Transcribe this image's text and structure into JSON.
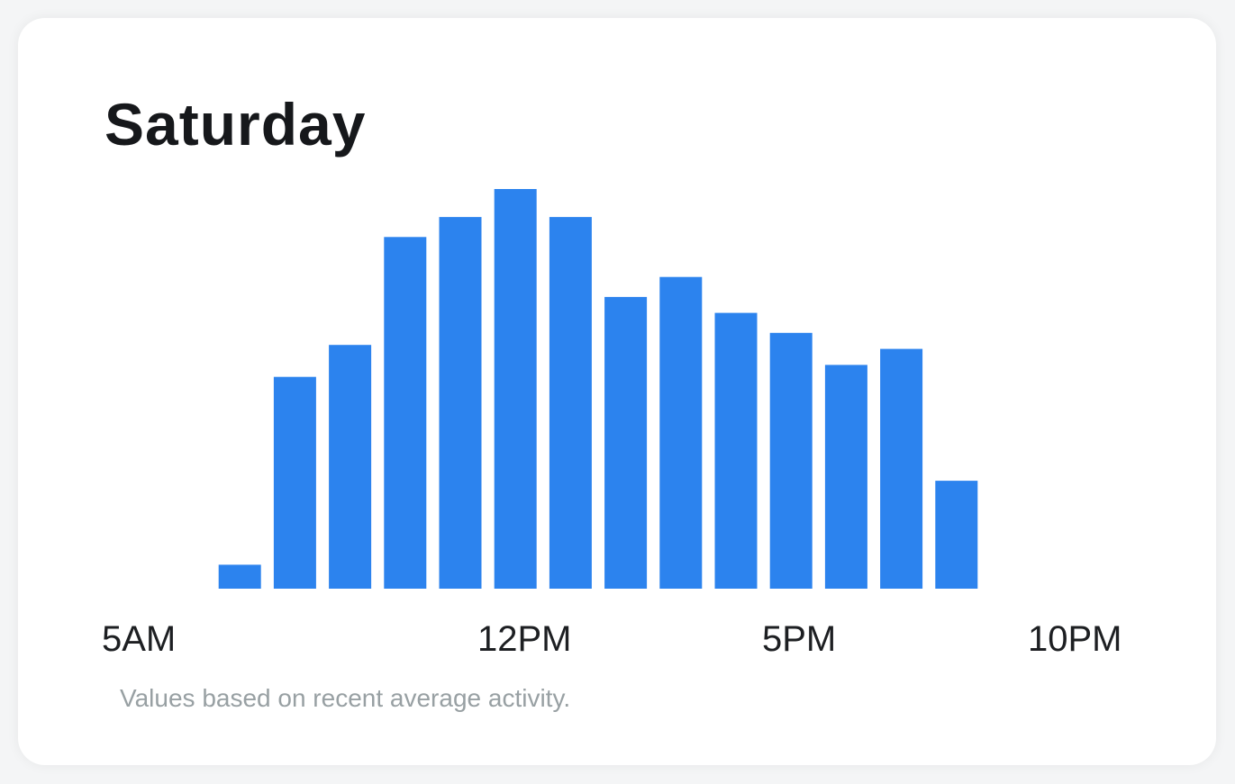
{
  "title": "Saturday",
  "footnote": "Values based on recent average activity.",
  "colors": {
    "bar": "#2c83ee",
    "text": "#16181b",
    "tick": "#1d1f22",
    "footnote": "#98a0a3"
  },
  "chart_data": {
    "type": "bar",
    "title": "Saturday",
    "xlabel": "",
    "ylabel": "",
    "grid": false,
    "categories": [
      "5AM",
      "6AM",
      "7AM",
      "8AM",
      "9AM",
      "10AM",
      "11AM",
      "12PM",
      "1PM",
      "2PM",
      "3PM",
      "4PM",
      "5PM",
      "6PM",
      "7PM",
      "8PM",
      "9PM",
      "10PM"
    ],
    "values": [
      0,
      6,
      53,
      61,
      88,
      93,
      100,
      93,
      73,
      78,
      69,
      64,
      56,
      60,
      27,
      0,
      0,
      0
    ],
    "ylim": [
      0,
      100
    ],
    "tick_labels": [
      "5AM",
      "12PM",
      "5PM",
      "10PM"
    ]
  }
}
